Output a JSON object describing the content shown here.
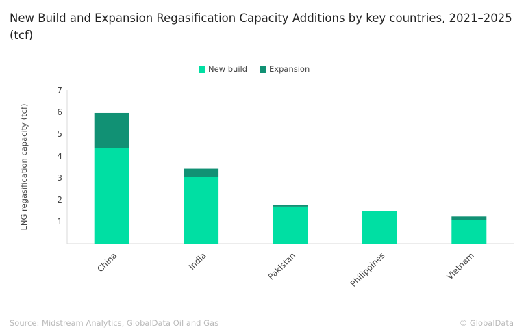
{
  "chart_data": {
    "type": "bar",
    "stacked": true,
    "title": "New Build and Expansion Regasification Capacity Additions by key countries, 2021–2025 (tcf)",
    "xlabel": "",
    "ylabel": "LNG regasification capacity (tcf)",
    "ylim": [
      0,
      7
    ],
    "yticks": [
      1,
      2,
      3,
      4,
      5,
      6,
      7
    ],
    "grid": false,
    "legend_position": "top",
    "categories": [
      "China",
      "India",
      "Pakistan",
      "Philippines",
      "Vietnam"
    ],
    "series": [
      {
        "name": "New build",
        "color": "#00dfa3",
        "values": [
          4.37,
          3.06,
          1.69,
          1.48,
          1.08
        ]
      },
      {
        "name": "Expansion",
        "color": "#119174",
        "values": [
          1.6,
          0.36,
          0.07,
          0,
          0.16
        ]
      }
    ]
  },
  "footer": {
    "source": "Source: Midstream Analytics, GlobalData Oil and Gas",
    "copyright": "© GlobalData"
  }
}
